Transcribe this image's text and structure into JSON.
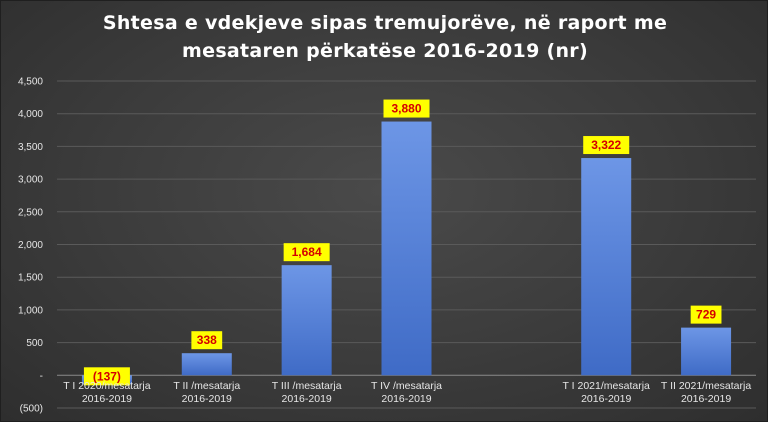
{
  "chart_data": {
    "type": "bar",
    "title_line1": "Shtesa e vdekjeve sipas tremujorëve, në raport me",
    "title_line2": "mesataren përkatëse 2016-2019 (nr)",
    "categories": [
      [
        "T I 2020/mesatarja",
        "2016-2019"
      ],
      [
        "T II /mesatarja",
        "2016-2019"
      ],
      [
        "T III /mesatarja",
        "2016-2019"
      ],
      [
        "T IV /mesatarja",
        "2016-2019"
      ],
      [
        "",
        ""
      ],
      [
        "T I 2021/mesatarja",
        "2016-2019"
      ],
      [
        "T II 2021/mesatarja",
        "2016-2019"
      ]
    ],
    "values": [
      -137,
      338,
      1684,
      3880,
      null,
      3322,
      729
    ],
    "data_labels": [
      "(137)",
      "338",
      "1,684",
      "3,880",
      "",
      "3,322",
      "729"
    ],
    "ylim": [
      -500,
      4500
    ],
    "yticks": [
      -500,
      0,
      500,
      1000,
      1500,
      2000,
      2500,
      3000,
      3500,
      4000,
      4500
    ],
    "ytick_labels": [
      "(500)",
      "-",
      "500",
      "1,000",
      "1,500",
      "2,000",
      "2,500",
      "3,000",
      "3,500",
      "4,000",
      "4,500"
    ],
    "grid": true,
    "legend": "none",
    "bar_color": "#4a78d0",
    "label_bg_color": "#ffff00",
    "label_text_color": "#d40000"
  }
}
